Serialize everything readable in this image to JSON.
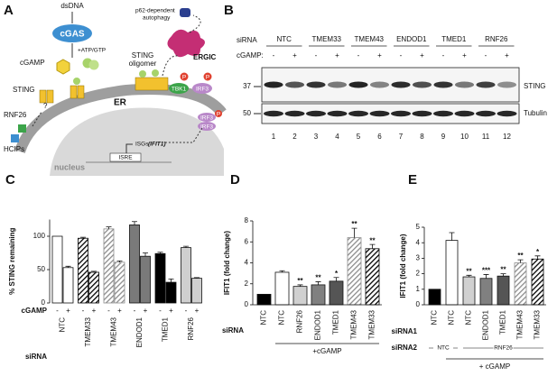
{
  "panel_a": {
    "letter": "A",
    "dsdna": "dsDNA",
    "cgas": "cGAS",
    "atp": "+ATP/GTP",
    "cgamp": "cGAMP",
    "sting": "STING",
    "oligomer": [
      "STING",
      "oligomer"
    ],
    "autophagy": [
      "p62-dependent",
      "autophagy"
    ],
    "ergic": "ERGIC",
    "er": "ER",
    "tbk1": "TBK1",
    "irf3": "IRF3",
    "phospho": "P",
    "rnf26": "RNF26",
    "hcips": "HCIPs",
    "question": "?",
    "isgs": "ISGs",
    "ifit1": "(IFIT1)",
    "isre": "ISRE",
    "nucleus": "nucleus"
  },
  "panel_b": {
    "letter": "B",
    "sirna_label": "siRNA",
    "groups": [
      "NTC",
      "TMEM33",
      "TMEM43",
      "ENDOD1",
      "TMED1",
      "RNF26"
    ],
    "cgamp_label": "cGAMP:",
    "treatment": [
      "-",
      "+",
      "-",
      "+",
      "-",
      "+",
      "-",
      "+",
      "-",
      "+",
      "-",
      "+"
    ],
    "markers": [
      37,
      50
    ],
    "blots": [
      "STING",
      "Tubulin"
    ],
    "lanes": [
      1,
      2,
      3,
      4,
      5,
      6,
      7,
      8,
      9,
      10,
      11,
      12
    ]
  },
  "chart_data": [
    {
      "letter": "C",
      "type": "bar",
      "ylabel": "% STING remaining",
      "ylim": [
        0,
        125
      ],
      "yticks": [
        0,
        50,
        100
      ],
      "groups": [
        "NTC",
        "TMEM33",
        "TMEM43",
        "ENDOD1",
        "TMED1",
        "RNF26"
      ],
      "row_labels": [
        "cGAMP",
        "siRNA"
      ],
      "treatment": [
        "-",
        "+",
        "-",
        "+",
        "-",
        "+",
        "-",
        "+",
        "-",
        "+",
        "-",
        "+"
      ],
      "values": [
        100,
        53,
        97,
        46,
        111,
        61,
        117,
        70,
        74,
        31,
        83,
        37
      ],
      "errors": [
        null,
        2,
        1.5,
        1.5,
        3,
        2,
        5,
        5,
        2,
        5,
        2,
        1
      ],
      "colors": [
        "#ffffff",
        "#ffffff",
        "#000000",
        "#000000",
        "#8c8c8c",
        "#8c8c8c",
        "#7a7a7a",
        "#7a7a7a",
        "#000000",
        "#000000",
        "#cfcfcf",
        "#cfcfcf"
      ],
      "hatch": [
        false,
        false,
        true,
        true,
        true,
        true,
        false,
        false,
        false,
        false,
        false,
        false
      ]
    },
    {
      "letter": "D",
      "type": "bar",
      "ylabel": "IFIT1 (fold change)",
      "xlabel": "siRNA",
      "ylim": [
        0,
        8
      ],
      "yticks": [
        0,
        2,
        4,
        6,
        8
      ],
      "categories": [
        "NTC",
        "NTC",
        "RNF26",
        "ENDOD1",
        "TMED1",
        "TMEM43",
        "TMEM33"
      ],
      "values": [
        1,
        3.1,
        1.75,
        1.9,
        2.25,
        6.4,
        5.35
      ],
      "errors": [
        null,
        0.15,
        0.15,
        0.3,
        0.35,
        0.9,
        0.4
      ],
      "stars": [
        null,
        null,
        "**",
        "**",
        "*",
        "**",
        "**"
      ],
      "colors": [
        "#000000",
        "#ffffff",
        "#d0d0d0",
        "#808080",
        "#555555",
        "#8c8c8c",
        "#000000"
      ],
      "hatch": [
        false,
        false,
        false,
        false,
        false,
        true,
        true
      ],
      "bracket": "+cGAMP"
    },
    {
      "letter": "E",
      "type": "bar",
      "ylabel": "IFIT1 (fold change)",
      "ylim": [
        0,
        5
      ],
      "yticks": [
        0,
        1,
        2,
        3,
        4,
        5
      ],
      "categories": [
        "NTC",
        "NTC",
        "NTC",
        "ENDOD1",
        "TMED1",
        "TMEM43",
        "TMEM33"
      ],
      "values": [
        1,
        4.15,
        1.8,
        1.7,
        1.85,
        2.7,
        2.95
      ],
      "errors": [
        null,
        0.5,
        0.1,
        0.25,
        0.15,
        0.2,
        0.2
      ],
      "stars": [
        null,
        null,
        "**",
        "***",
        "**",
        "**",
        "*"
      ],
      "colors": [
        "#000000",
        "#ffffff",
        "#d0d0d0",
        "#808080",
        "#555555",
        "#8c8c8c",
        "#000000"
      ],
      "hatch": [
        false,
        false,
        false,
        false,
        false,
        true,
        true
      ],
      "row_labels": [
        "siRNA1",
        "siRNA2"
      ],
      "sirna2": [
        "NTC",
        "RNF26"
      ],
      "bracket": "+ cGAMP"
    }
  ]
}
